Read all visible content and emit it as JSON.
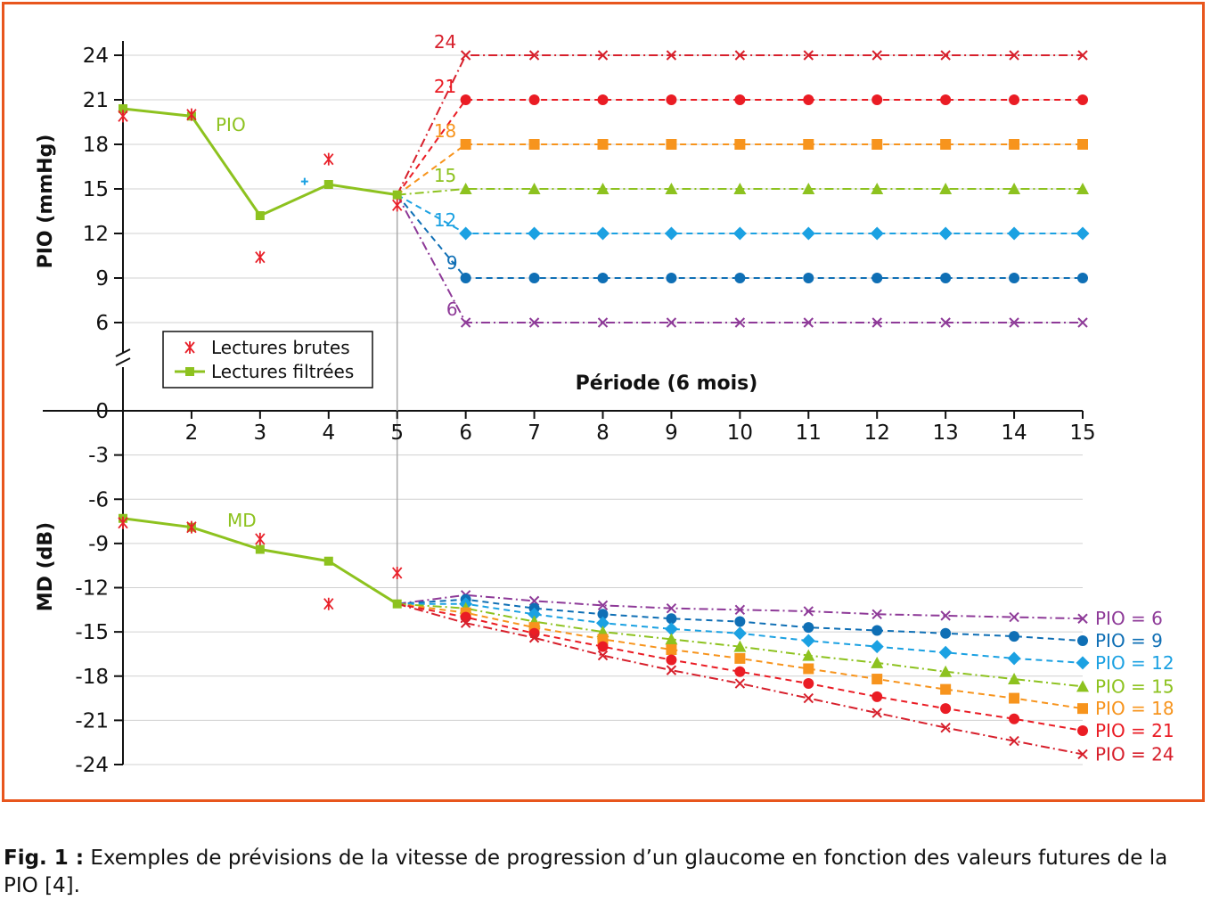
{
  "caption": {
    "label": "Fig. 1 :",
    "text": "Exemples de prévisions de la vitesse de progression d’un glaucome en fonction des valeurs futures de la PIO [4]."
  },
  "chart_data": {
    "type": "line",
    "x_title": "Période (6 mois)",
    "x_ticks": [
      2,
      3,
      4,
      5,
      6,
      7,
      8,
      9,
      10,
      11,
      12,
      13,
      14,
      15
    ],
    "x_range": [
      1,
      15
    ],
    "legend": {
      "position": "center-left",
      "entries": [
        "Lectures brutes",
        "Lectures filtrées"
      ]
    },
    "colors": {
      "filtered": "#8dc21f",
      "raw": "#e8212a",
      "pio24": "#d7202c",
      "pio21": "#ea1c24",
      "pio18": "#f7941d",
      "pio15": "#8dc21f",
      "pio12": "#1ba1e2",
      "pio9": "#0f6fb5",
      "pio6": "#8e3a98"
    },
    "upper": {
      "ylabel": "PIO (mmHg)",
      "ylim": [
        6,
        24
      ],
      "y_ticks": [
        24,
        21,
        18,
        15,
        12,
        9,
        6
      ],
      "series_label": "PIO",
      "filtered": [
        [
          1,
          20.4
        ],
        [
          2,
          19.9
        ],
        [
          3,
          13.2
        ],
        [
          4,
          15.3
        ],
        [
          5,
          14.6
        ]
      ],
      "raw": [
        [
          1,
          19.9
        ],
        [
          2,
          20.0
        ],
        [
          3,
          10.4
        ],
        [
          4,
          17.0
        ],
        [
          5,
          13.9
        ]
      ],
      "extra_marker": [
        3.65,
        15.5
      ],
      "scenarios": [
        {
          "label": "24",
          "value": 24,
          "color_key": "pio24",
          "marker": "x",
          "dash": "dashdot"
        },
        {
          "label": "21",
          "value": 21,
          "color_key": "pio21",
          "marker": "circle",
          "dash": "dash"
        },
        {
          "label": "18",
          "value": 18,
          "color_key": "pio18",
          "marker": "square",
          "dash": "dash"
        },
        {
          "label": "15",
          "value": 15,
          "color_key": "pio15",
          "marker": "triangle",
          "dash": "dashdot"
        },
        {
          "label": "12",
          "value": 12,
          "color_key": "pio12",
          "marker": "diamond",
          "dash": "dash"
        },
        {
          "label": "9",
          "value": 9,
          "color_key": "pio9",
          "marker": "circle",
          "dash": "dash"
        },
        {
          "label": "6",
          "value": 6,
          "color_key": "pio6",
          "marker": "x",
          "dash": "dashdot"
        }
      ]
    },
    "lower": {
      "ylabel": "MD (dB)",
      "ylim": [
        -24,
        0
      ],
      "y_ticks": [
        0,
        -3,
        -6,
        -9,
        -12,
        -15,
        -18,
        -21,
        -24
      ],
      "series_label": "MD",
      "filtered": [
        [
          1,
          -7.3
        ],
        [
          2,
          -7.9
        ],
        [
          3,
          -9.4
        ],
        [
          4,
          -10.2
        ],
        [
          5,
          -13.1
        ]
      ],
      "raw": [
        [
          1,
          -7.6
        ],
        [
          2,
          -7.9
        ],
        [
          3,
          -8.7
        ],
        [
          4,
          -13.1
        ],
        [
          5,
          -11.0
        ]
      ],
      "scenarios": [
        {
          "label": "PIO = 6",
          "color_key": "pio6",
          "marker": "x",
          "dash": "dashdot",
          "values": [
            [
              5,
              -13.1
            ],
            [
              6,
              -12.5
            ],
            [
              7,
              -12.9
            ],
            [
              8,
              -13.2
            ],
            [
              9,
              -13.4
            ],
            [
              10,
              -13.5
            ],
            [
              11,
              -13.6
            ],
            [
              12,
              -13.8
            ],
            [
              13,
              -13.9
            ],
            [
              14,
              -14.0
            ],
            [
              15,
              -14.1
            ]
          ]
        },
        {
          "label": "PIO = 9",
          "color_key": "pio9",
          "marker": "circle",
          "dash": "dash",
          "values": [
            [
              5,
              -13.1
            ],
            [
              6,
              -12.8
            ],
            [
              7,
              -13.4
            ],
            [
              8,
              -13.8
            ],
            [
              9,
              -14.1
            ],
            [
              10,
              -14.3
            ],
            [
              11,
              -14.7
            ],
            [
              12,
              -14.9
            ],
            [
              13,
              -15.1
            ],
            [
              14,
              -15.3
            ],
            [
              15,
              -15.6
            ]
          ]
        },
        {
          "label": "PIO = 12",
          "color_key": "pio12",
          "marker": "diamond",
          "dash": "dash",
          "values": [
            [
              5,
              -13.1
            ],
            [
              6,
              -13.1
            ],
            [
              7,
              -13.8
            ],
            [
              8,
              -14.4
            ],
            [
              9,
              -14.8
            ],
            [
              10,
              -15.1
            ],
            [
              11,
              -15.6
            ],
            [
              12,
              -16.0
            ],
            [
              13,
              -16.4
            ],
            [
              14,
              -16.8
            ],
            [
              15,
              -17.1
            ]
          ]
        },
        {
          "label": "PIO = 15",
          "color_key": "pio15",
          "marker": "triangle",
          "dash": "dashdot",
          "values": [
            [
              5,
              -13.1
            ],
            [
              6,
              -13.4
            ],
            [
              7,
              -14.3
            ],
            [
              8,
              -15.0
            ],
            [
              9,
              -15.5
            ],
            [
              10,
              -16.0
            ],
            [
              11,
              -16.6
            ],
            [
              12,
              -17.1
            ],
            [
              13,
              -17.7
            ],
            [
              14,
              -18.2
            ],
            [
              15,
              -18.7
            ]
          ]
        },
        {
          "label": "PIO = 18",
          "color_key": "pio18",
          "marker": "square",
          "dash": "dash",
          "values": [
            [
              5,
              -13.1
            ],
            [
              6,
              -13.7
            ],
            [
              7,
              -14.7
            ],
            [
              8,
              -15.5
            ],
            [
              9,
              -16.2
            ],
            [
              10,
              -16.8
            ],
            [
              11,
              -17.5
            ],
            [
              12,
              -18.2
            ],
            [
              13,
              -18.9
            ],
            [
              14,
              -19.5
            ],
            [
              15,
              -20.2
            ]
          ]
        },
        {
          "label": "PIO = 21",
          "color_key": "pio21",
          "marker": "circle",
          "dash": "dash",
          "values": [
            [
              5,
              -13.1
            ],
            [
              6,
              -14.0
            ],
            [
              7,
              -15.1
            ],
            [
              8,
              -16.0
            ],
            [
              9,
              -16.9
            ],
            [
              10,
              -17.7
            ],
            [
              11,
              -18.5
            ],
            [
              12,
              -19.4
            ],
            [
              13,
              -20.2
            ],
            [
              14,
              -20.9
            ],
            [
              15,
              -21.7
            ]
          ]
        },
        {
          "label": "PIO = 24",
          "color_key": "pio24",
          "marker": "x",
          "dash": "dashdot",
          "values": [
            [
              5,
              -13.1
            ],
            [
              6,
              -14.4
            ],
            [
              7,
              -15.4
            ],
            [
              8,
              -16.6
            ],
            [
              9,
              -17.6
            ],
            [
              10,
              -18.5
            ],
            [
              11,
              -19.5
            ],
            [
              12,
              -20.5
            ],
            [
              13,
              -21.5
            ],
            [
              14,
              -22.4
            ],
            [
              15,
              -23.3
            ]
          ]
        }
      ]
    }
  }
}
